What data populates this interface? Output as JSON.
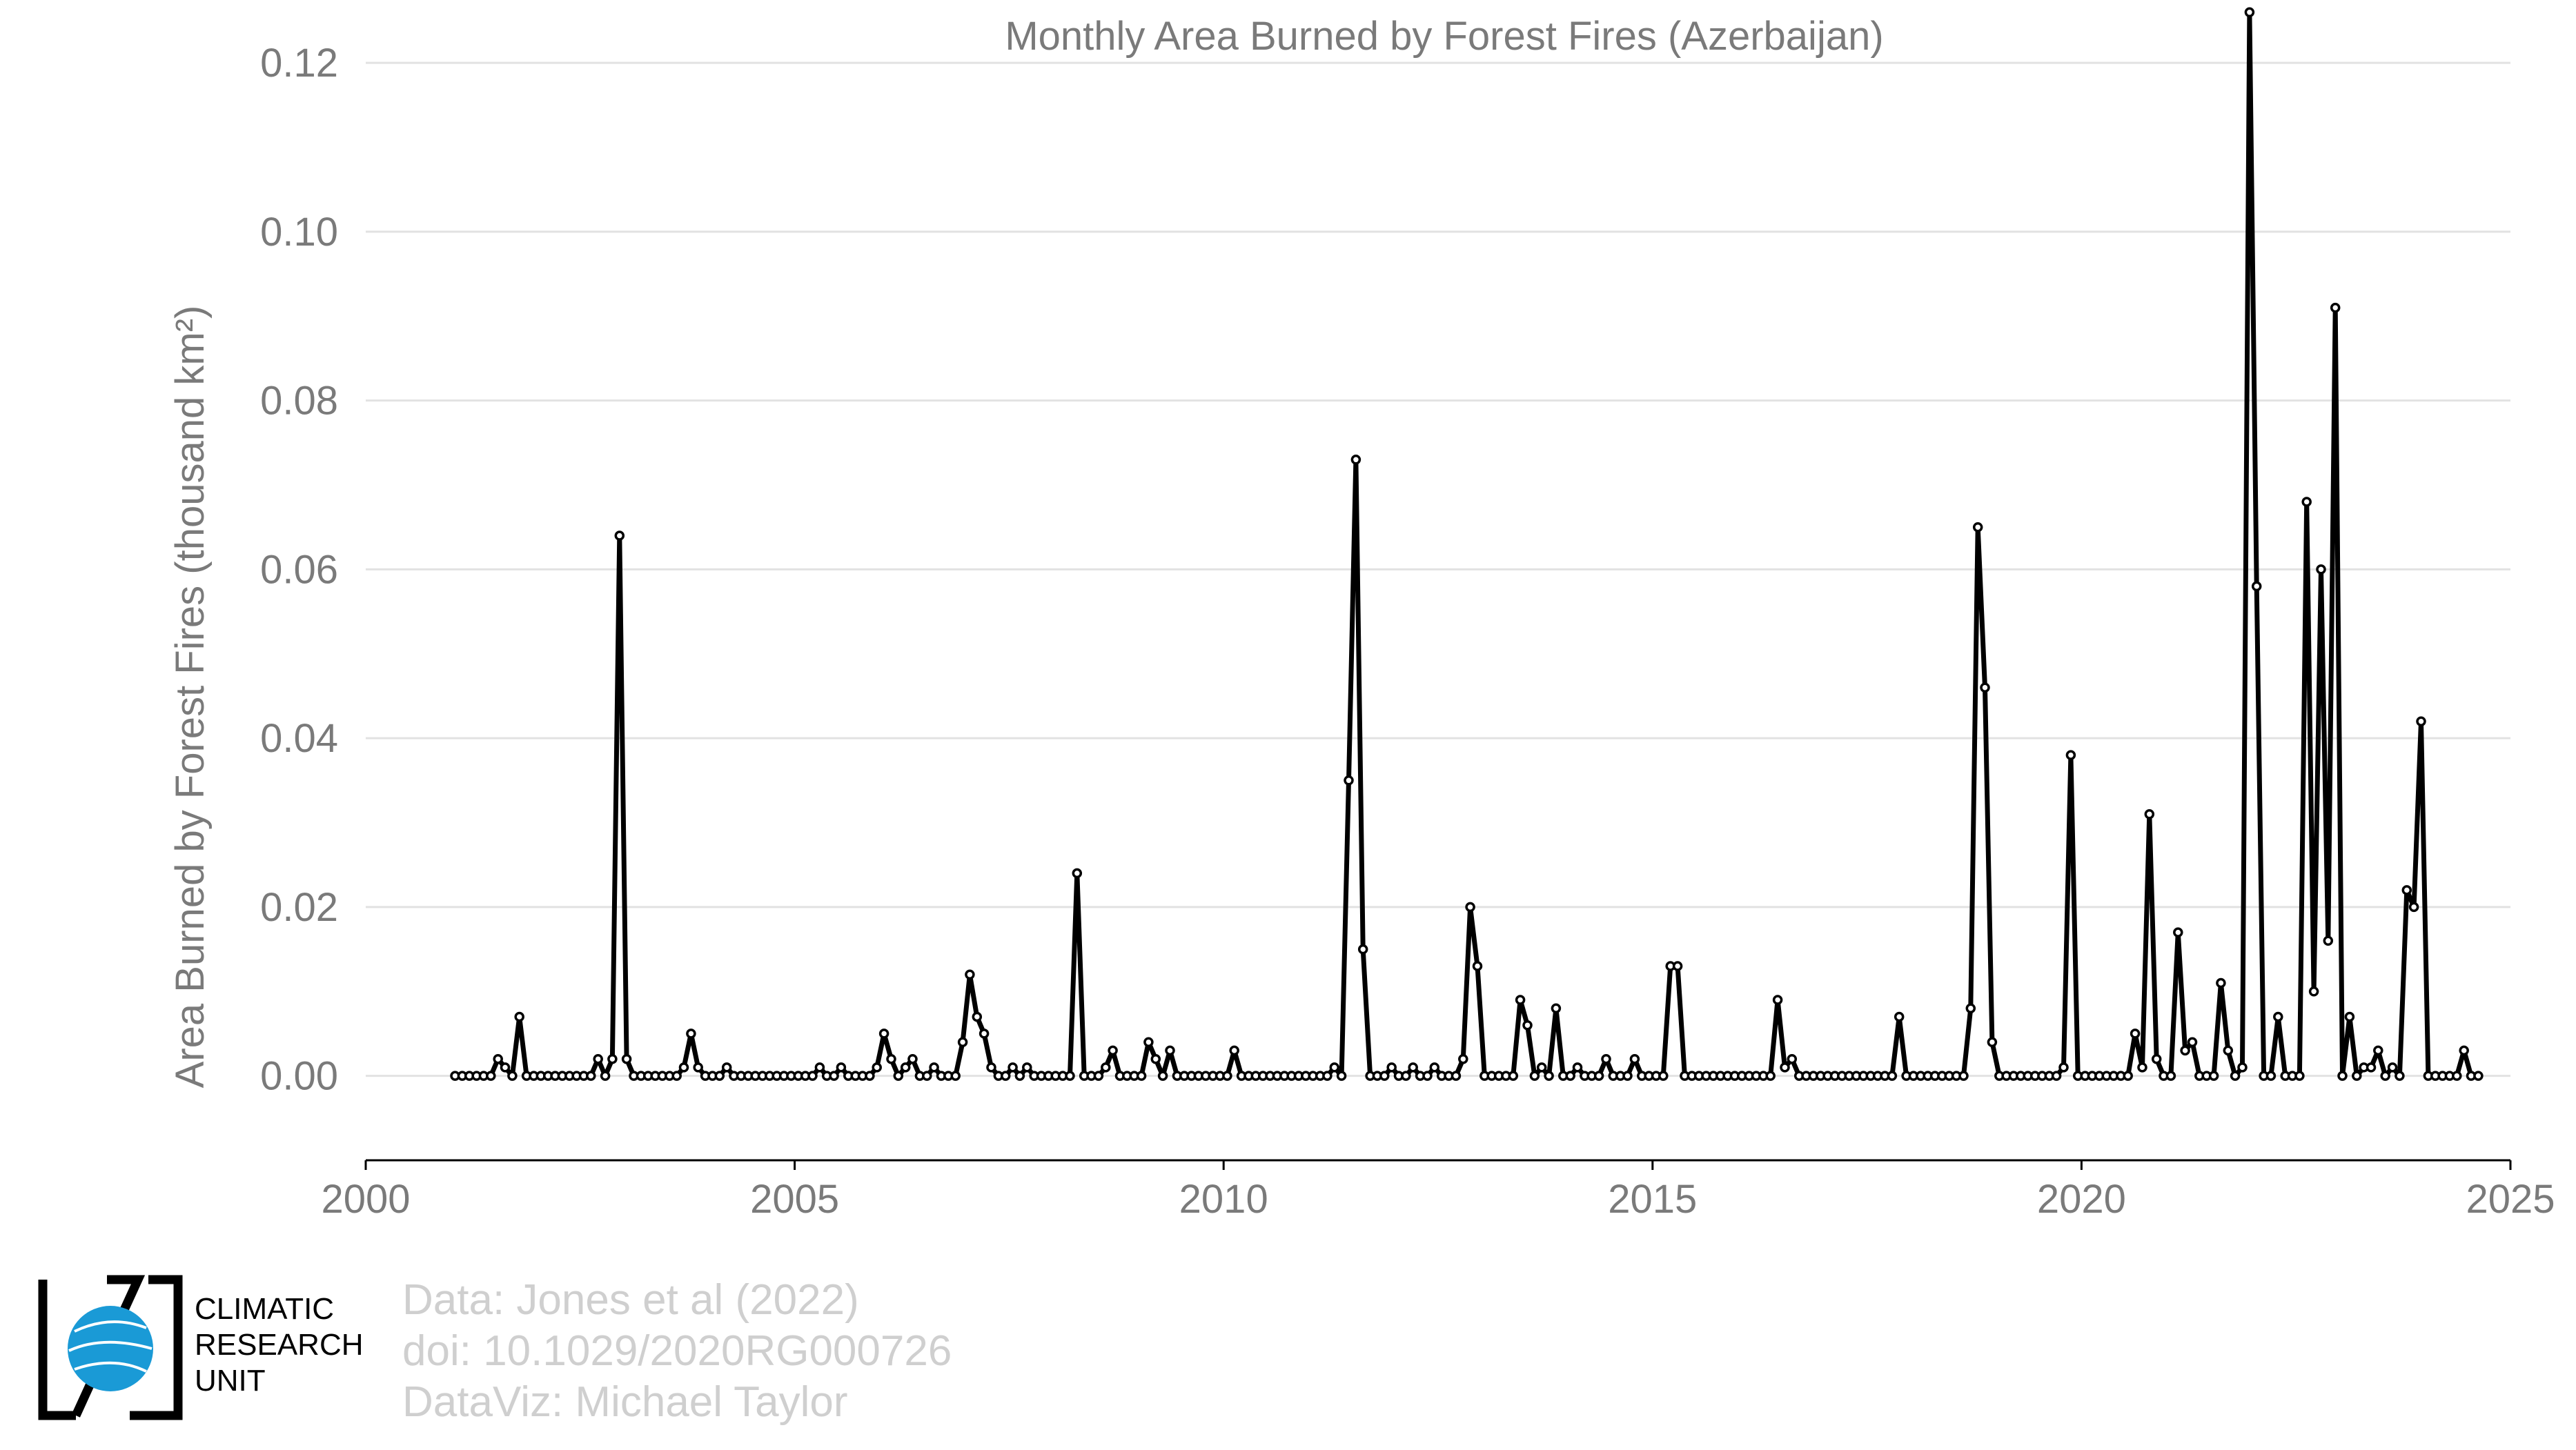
{
  "credits": {
    "line1": "Data: Jones et al (2022)",
    "line2": "doi: 10.1029/2020RG000726",
    "line3": "DataViz: Michael Taylor"
  },
  "logo": {
    "line1": "CLIMATIC",
    "line2": "RESEARCH",
    "line3": "UNIT",
    "globe_color": "#1a9ad6"
  },
  "chart_data": {
    "type": "line",
    "title": "Monthly Area Burned by Forest Fires (Azerbaijan)",
    "ylabel": "Area Burned by Forest Fires (thousand km²)",
    "xlabel": "",
    "xlim": [
      2000,
      2025
    ],
    "ylim": [
      -0.01,
      0.125
    ],
    "x_ticks": [
      2000,
      2005,
      2010,
      2015,
      2020,
      2025
    ],
    "y_ticks": [
      0.0,
      0.02,
      0.04,
      0.06,
      0.08,
      0.1,
      0.12
    ],
    "y_tick_labels": [
      "0.00",
      "0.02",
      "0.04",
      "0.06",
      "0.08",
      "0.10",
      "0.12"
    ],
    "grid": "horizontal",
    "line_color": "#000000",
    "series": [
      {
        "start_year": 2001,
        "start_month": 1,
        "values": [
          0,
          0,
          0,
          0,
          0,
          0,
          0.002,
          0.001,
          0,
          0.007,
          0,
          0,
          0,
          0,
          0,
          0,
          0,
          0,
          0,
          0,
          0.002,
          0,
          0.002,
          0.064,
          0.002,
          0,
          0,
          0,
          0,
          0,
          0,
          0,
          0.001,
          0.005,
          0.001,
          0,
          0,
          0,
          0.001,
          0,
          0,
          0,
          0,
          0,
          0,
          0,
          0,
          0,
          0,
          0,
          0,
          0.001,
          0,
          0,
          0.001,
          0,
          0,
          0,
          0,
          0.001,
          0.005,
          0.002,
          0,
          0.001,
          0.002,
          0,
          0,
          0.001,
          0,
          0,
          0,
          0.004,
          0.012,
          0.007,
          0.005,
          0.001,
          0,
          0,
          0.001,
          0,
          0.001,
          0,
          0,
          0,
          0,
          0,
          0,
          0.024,
          0,
          0,
          0,
          0.001,
          0.003,
          0,
          0,
          0,
          0,
          0.004,
          0.002,
          0,
          0.003,
          0,
          0,
          0,
          0,
          0,
          0,
          0,
          0,
          0.003,
          0,
          0,
          0,
          0,
          0,
          0,
          0,
          0,
          0,
          0,
          0,
          0,
          0,
          0.001,
          0,
          0.035,
          0.073,
          0.015,
          0,
          0,
          0,
          0.001,
          0,
          0,
          0.001,
          0,
          0,
          0.001,
          0,
          0,
          0,
          0.002,
          0.02,
          0.013,
          0,
          0,
          0,
          0,
          0,
          0.009,
          0.006,
          0,
          0.001,
          0,
          0.008,
          0,
          0,
          0.001,
          0,
          0,
          0,
          0.002,
          0,
          0,
          0,
          0.002,
          0,
          0,
          0,
          0,
          0.013,
          0.013,
          0,
          0,
          0,
          0,
          0,
          0,
          0,
          0,
          0,
          0,
          0,
          0,
          0,
          0.009,
          0.001,
          0.002,
          0,
          0,
          0,
          0,
          0,
          0,
          0,
          0,
          0,
          0,
          0,
          0,
          0,
          0,
          0.007,
          0,
          0,
          0,
          0,
          0,
          0,
          0,
          0,
          0,
          0.008,
          0.065,
          0.046,
          0.004,
          0,
          0,
          0,
          0,
          0,
          0,
          0,
          0,
          0,
          0.001,
          0.038,
          0,
          0,
          0,
          0,
          0,
          0,
          0,
          0,
          0.005,
          0.001,
          0.031,
          0.002,
          0,
          0,
          0.017,
          0.003,
          0.004,
          0,
          0,
          0,
          0.011,
          0.003,
          0,
          0.001,
          0.126,
          0.058,
          0,
          0,
          0.007,
          0,
          0,
          0,
          0.068,
          0.01,
          0.06,
          0.016,
          0.091,
          0,
          0.007,
          0,
          0.001,
          0.001,
          0.003,
          0,
          0.001,
          0,
          0.022,
          0.02,
          0.042,
          0,
          0,
          0,
          0,
          0,
          0.003,
          0,
          0
        ]
      }
    ]
  }
}
